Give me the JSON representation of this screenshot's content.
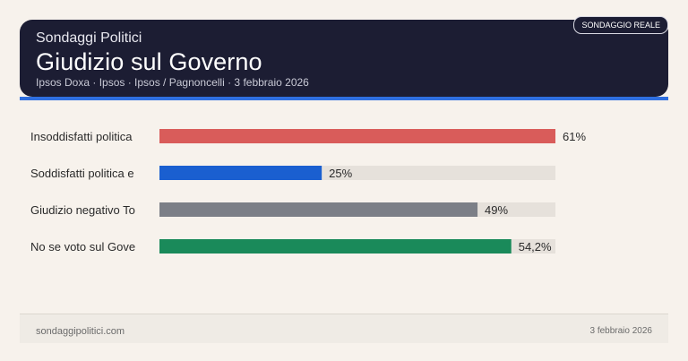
{
  "header": {
    "kicker": "Sondaggi Politici",
    "title": "Giudizio sul Governo",
    "subtitle": "Ipsos Doxa · Ipsos · Ipsos / Pagnoncelli · 3 febbraio 2026",
    "badge": "SONDAGGIO REALE"
  },
  "chart_data": {
    "type": "bar",
    "orientation": "horizontal",
    "categories": [
      "Insoddisfatti politica",
      "Soddisfatti politica e",
      "Giudizio negativo To",
      "No se voto sul Gove"
    ],
    "values": [
      61,
      25,
      49,
      54.2
    ],
    "value_labels": [
      "61%",
      "25%",
      "49%",
      "54,2%"
    ],
    "colors": [
      "#d95c5a",
      "#1a5fd0",
      "#7c7f87",
      "#1a8a5a"
    ],
    "track_color": "#e6e1db",
    "xlim": [
      0,
      61
    ],
    "grid": false
  },
  "footer": {
    "site": "sondaggipolitici.com",
    "date": "3 febbraio 2026"
  }
}
